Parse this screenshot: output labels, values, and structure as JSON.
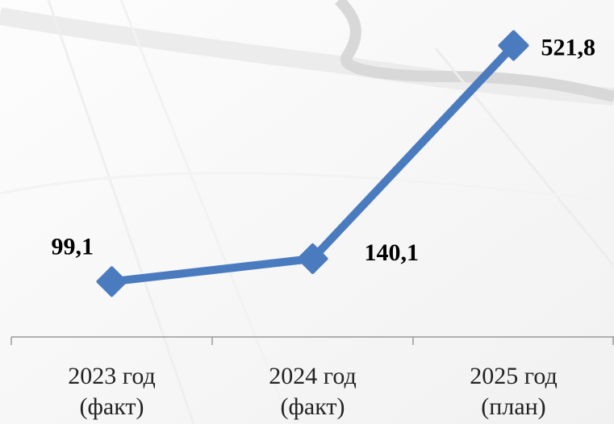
{
  "chart_data": {
    "type": "line",
    "categories": [
      [
        "2023 год",
        "(факт)"
      ],
      [
        "2024 год",
        "(факт)"
      ],
      [
        "2025 год",
        "(план)"
      ]
    ],
    "series": [
      {
        "values": [
          99.1,
          140.1,
          521.8
        ],
        "data_labels": [
          "99,1",
          "140,1",
          "521,8"
        ],
        "color": "#4a7bbf",
        "marker": "diamond"
      }
    ],
    "ylim": [
      0,
      560
    ],
    "title": "",
    "xlabel": "",
    "ylabel": "",
    "grid": false,
    "legend": "none",
    "background_color": "#ffffff",
    "axis_color": "#9a9a9a"
  }
}
